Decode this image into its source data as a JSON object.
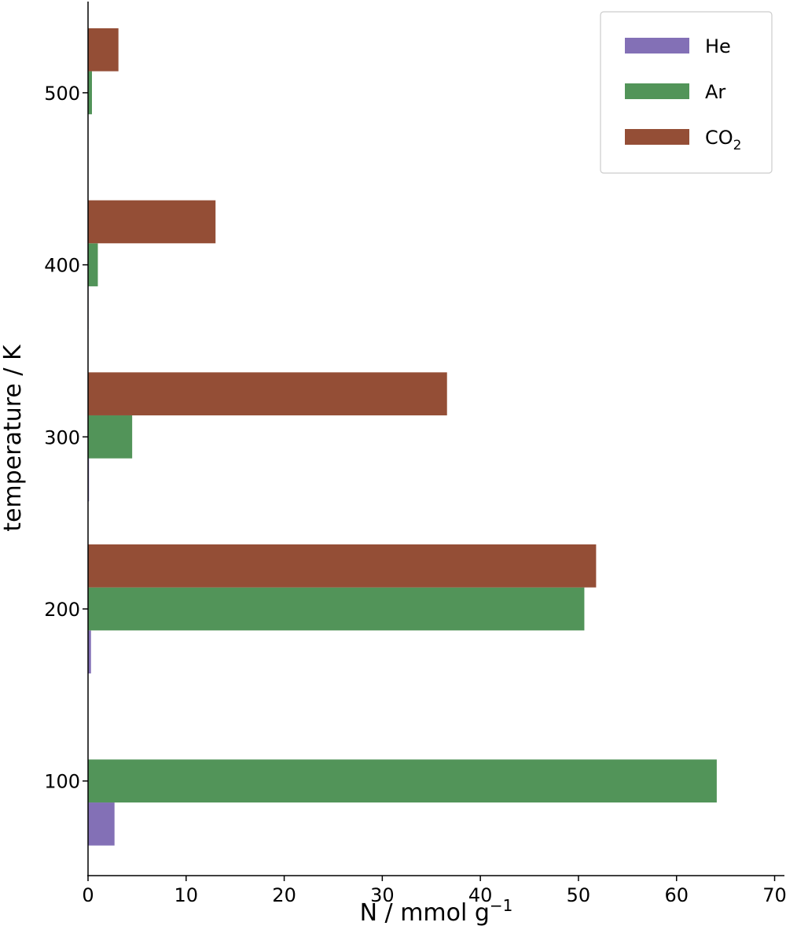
{
  "chart_data": {
    "type": "bar",
    "orientation": "horizontal",
    "categories": [
      "100",
      "200",
      "300",
      "400",
      "500"
    ],
    "series": [
      {
        "name": "He",
        "color": "#8370b6",
        "values": [
          2.7,
          0.3,
          0.1,
          0.05,
          0.0
        ]
      },
      {
        "name": "Ar",
        "color": "#529459",
        "values": [
          64.1,
          50.6,
          4.5,
          1.0,
          0.4
        ]
      },
      {
        "name": "CO",
        "name_sub": "2",
        "color": "#944e36",
        "values": [
          0.0,
          51.8,
          36.6,
          13.0,
          3.1
        ]
      }
    ],
    "xlabel": "N / mmol g",
    "xlabel_sup": "−1",
    "ylabel": "temperature / K",
    "xlim": [
      0,
      71
    ],
    "xticks": [
      "0",
      "10",
      "20",
      "30",
      "40",
      "50",
      "60",
      "70"
    ],
    "ylim": [
      45,
      553
    ],
    "legend_position": "top-right",
    "grid": false
  }
}
